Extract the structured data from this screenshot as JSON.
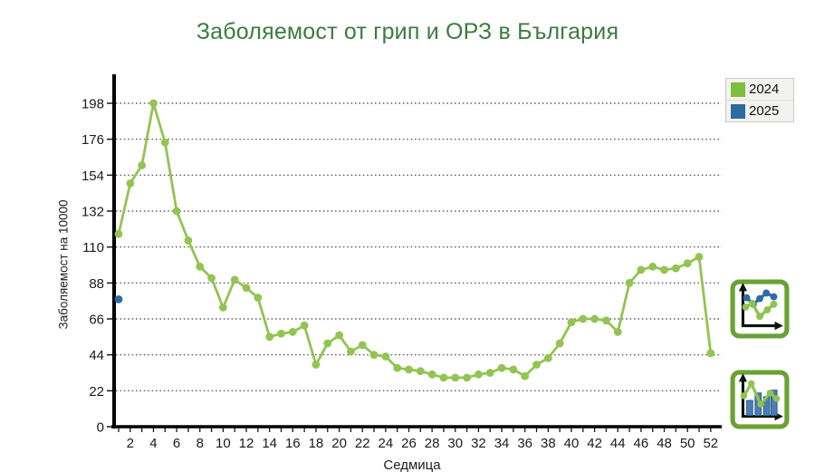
{
  "page": {
    "title": "Заболяемост от грип и ОРЗ в България"
  },
  "chart_data": {
    "type": "line",
    "title": "Заболяемост от грип и ОРЗ в България",
    "xlabel": "Седмица",
    "ylabel": "Заболяемост на 10000",
    "xlim": [
      0.5,
      53
    ],
    "ylim": [
      0,
      216
    ],
    "y_ticks": [
      0,
      22,
      44,
      66,
      88,
      110,
      132,
      154,
      176,
      198
    ],
    "x_ticks": [
      2,
      4,
      6,
      8,
      10,
      12,
      14,
      16,
      18,
      20,
      22,
      24,
      26,
      28,
      30,
      32,
      34,
      36,
      38,
      40,
      42,
      44,
      46,
      48,
      50,
      52
    ],
    "grid": "horizontal dotted",
    "legend_position": "top-right outside",
    "series": [
      {
        "name": "2024",
        "color": "#92c452",
        "x": [
          1,
          2,
          3,
          4,
          5,
          6,
          7,
          8,
          9,
          10,
          11,
          12,
          13,
          14,
          15,
          16,
          17,
          18,
          19,
          20,
          21,
          22,
          23,
          24,
          25,
          26,
          27,
          28,
          29,
          30,
          31,
          32,
          33,
          34,
          35,
          36,
          37,
          38,
          39,
          40,
          41,
          42,
          43,
          44,
          45,
          46,
          47,
          48,
          49,
          50,
          51,
          52
        ],
        "values": [
          118,
          149,
          160,
          198,
          174,
          132,
          114,
          98,
          91,
          73,
          90,
          85,
          79,
          55,
          57,
          58,
          62,
          38,
          51,
          56,
          46,
          50,
          44,
          43,
          36,
          35,
          34,
          32,
          30,
          30,
          30,
          32,
          33,
          36,
          35,
          31,
          38,
          42,
          51,
          64,
          66,
          66,
          65,
          58,
          88,
          96,
          98,
          96,
          97,
          100,
          104,
          45
        ]
      },
      {
        "name": "2025",
        "color": "#2d6ba3",
        "x": [
          1
        ],
        "values": [
          78
        ]
      }
    ]
  },
  "legend": {
    "items": [
      {
        "label": "2024",
        "color": "#7dbe3c"
      },
      {
        "label": "2025",
        "color": "#2d6ba3"
      }
    ]
  },
  "side_buttons": [
    {
      "icon": "line-chart-icon"
    },
    {
      "icon": "bar-chart-icon"
    }
  ],
  "colors": {
    "title": "#3c7b3e",
    "axis": "#000000",
    "tick_labels": "#1a1a1a",
    "gridline": "#454545",
    "icon_frame": "#6aa232"
  }
}
